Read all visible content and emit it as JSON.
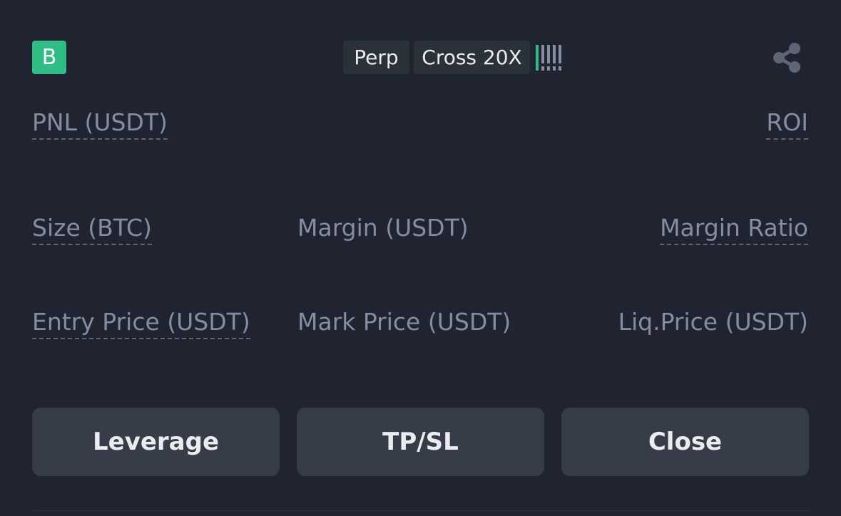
{
  "position": {
    "side_badge": "B",
    "contract_type": "Perp",
    "margin_mode": "Cross 20X",
    "risk_meter": {
      "level": 1,
      "max": 5,
      "active_color": "#2ebd85",
      "inactive_color": "#848e9c"
    },
    "share_icon": "share-icon"
  },
  "fields": {
    "pnl_label": "PNL (USDT)",
    "roi_label": "ROI",
    "size_label": "Size (BTC)",
    "margin_label": "Margin (USDT)",
    "margin_ratio_label": "Margin Ratio",
    "entry_price_label": "Entry Price (USDT)",
    "mark_price_label": "Mark Price (USDT)",
    "liq_price_label": "Liq.Price (USDT)"
  },
  "actions": {
    "leverage_label": "Leverage",
    "tpsl_label": "TP/SL",
    "close_label": "Close"
  },
  "colors": {
    "background": "#1f2430",
    "accent_green": "#2ebd85",
    "button_bg": "#363c48",
    "label_gray": "#848e9c"
  }
}
